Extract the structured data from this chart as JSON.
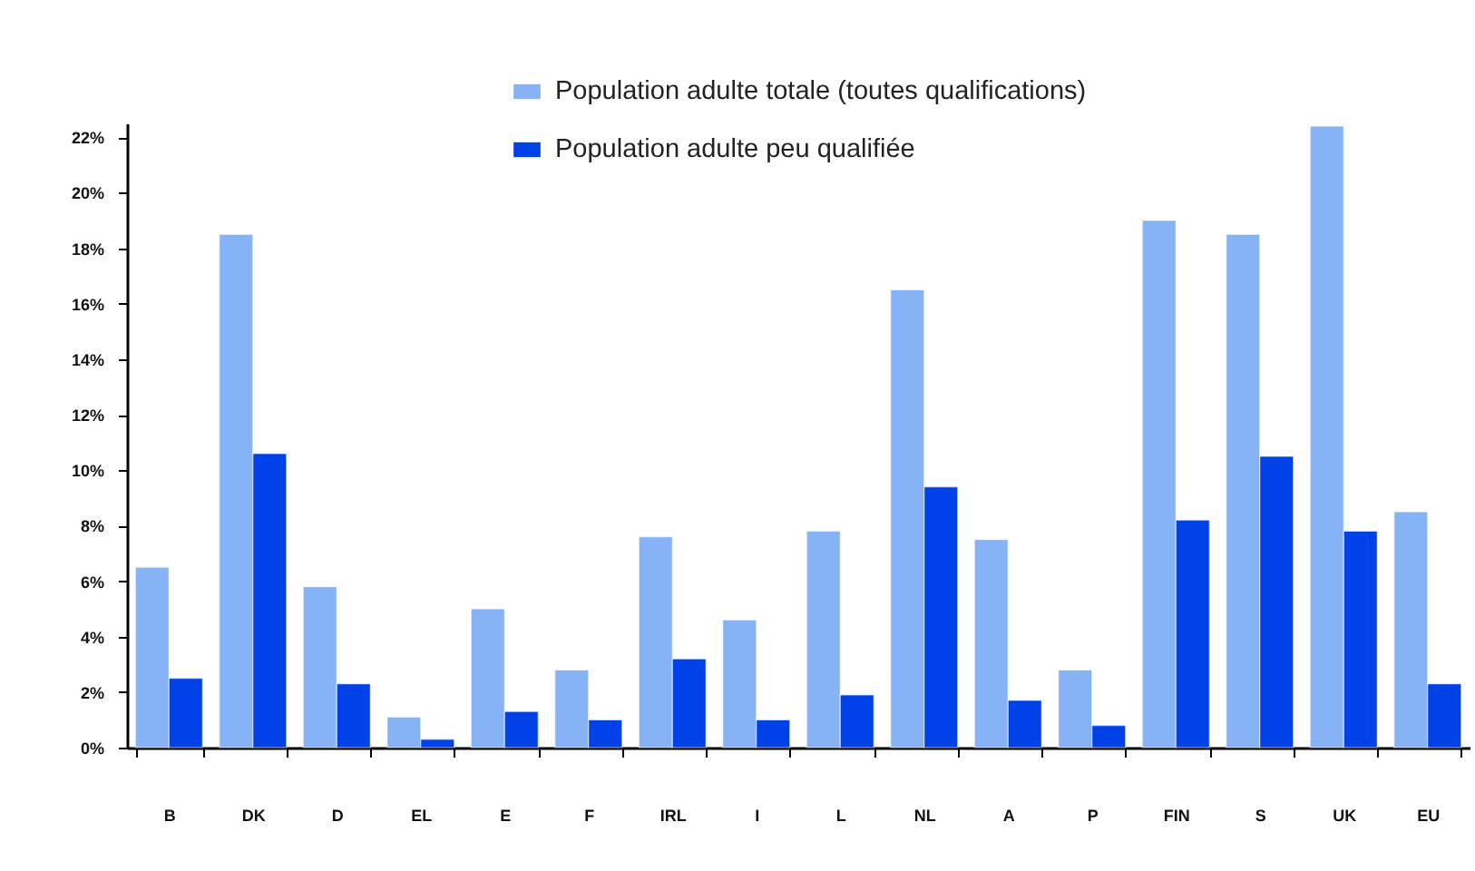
{
  "chart_data": {
    "type": "bar",
    "categories": [
      "B",
      "DK",
      "D",
      "EL",
      "E",
      "F",
      "IRL",
      "I",
      "L",
      "NL",
      "A",
      "P",
      "FIN",
      "S",
      "UK",
      "EU"
    ],
    "series": [
      {
        "name": "Population adulte totale (toutes qualifications)",
        "color": "#86b3f5",
        "values": [
          6.5,
          18.5,
          5.8,
          1.1,
          5.0,
          2.8,
          7.6,
          4.6,
          7.8,
          16.5,
          7.5,
          2.8,
          19.0,
          18.5,
          22.4,
          8.5
        ]
      },
      {
        "name": "Population adulte peu qualifiée",
        "color": "#0041e8",
        "values": [
          2.5,
          10.6,
          2.3,
          0.3,
          1.3,
          1.0,
          3.2,
          1.0,
          1.9,
          9.4,
          1.7,
          0.8,
          8.2,
          10.5,
          7.8,
          2.3
        ]
      }
    ],
    "ylim": [
      0,
      22.5
    ],
    "yticks": [
      {
        "value": 0,
        "label": "0%"
      },
      {
        "value": 2,
        "label": "2%"
      },
      {
        "value": 4,
        "label": "4%"
      },
      {
        "value": 6,
        "label": "6%"
      },
      {
        "value": 8,
        "label": "8%"
      },
      {
        "value": 10,
        "label": "10%"
      },
      {
        "value": 12,
        "label": "12%"
      },
      {
        "value": 14,
        "label": "14%"
      },
      {
        "value": 16,
        "label": "16%"
      },
      {
        "value": 18,
        "label": "18%"
      },
      {
        "value": 20,
        "label": "20%"
      },
      {
        "value": 22,
        "label": "22%"
      }
    ],
    "legend": "top"
  }
}
